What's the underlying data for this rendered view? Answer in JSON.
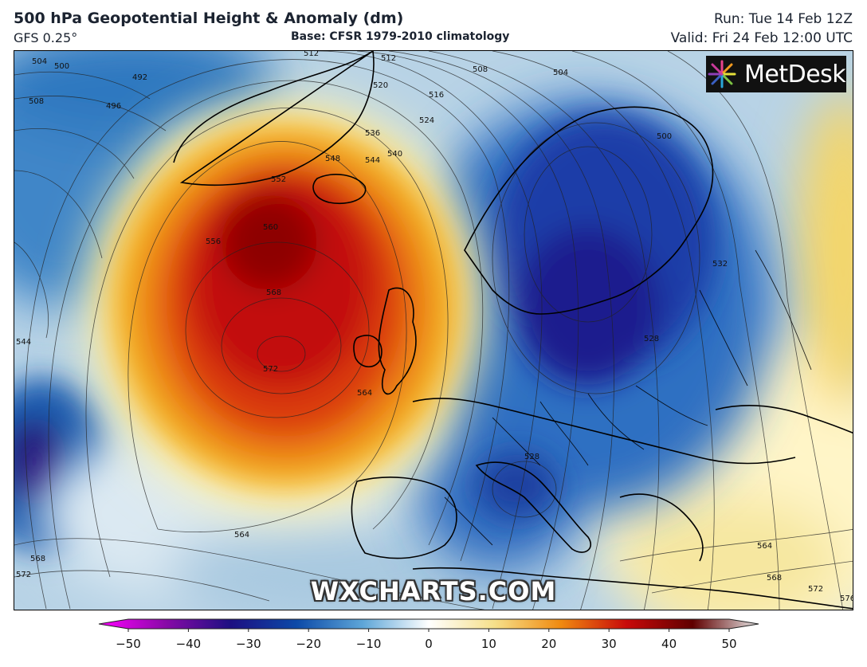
{
  "header": {
    "title": "500 hPa Geopotential Height & Anomaly (dm)",
    "model": "GFS 0.25°",
    "base": "Base: CFSR 1979-2010 climatology",
    "run": "Run: Tue 14 Feb 12Z",
    "valid": "Valid: Fri 24 Feb 12:00 UTC"
  },
  "map": {
    "logo_text": "MetDesk",
    "logo_icon": "metdesk-starburst-icon",
    "watermark": "WXCHARTS.COM",
    "contour_labels": [
      "504",
      "500",
      "492",
      "496",
      "508",
      "512",
      "512",
      "520",
      "516",
      "524",
      "536",
      "540",
      "548",
      "544",
      "552",
      "560",
      "556",
      "568",
      "572",
      "564",
      "504",
      "508",
      "500",
      "532",
      "528",
      "528",
      "544",
      "564",
      "568",
      "572",
      "564",
      "568",
      "572",
      "576"
    ]
  },
  "colorbar": {
    "ticks": [
      "−50",
      "−40",
      "−30",
      "−20",
      "−10",
      "0",
      "10",
      "20",
      "30",
      "40",
      "50"
    ],
    "colors": [
      "#ff00ff",
      "#8a0aa8",
      "#1c0f82",
      "#0c4aa8",
      "#5ea6d8",
      "#ffffff",
      "#f6e08a",
      "#f08a10",
      "#c80a0a",
      "#600000",
      "#e8e8e8"
    ]
  }
}
